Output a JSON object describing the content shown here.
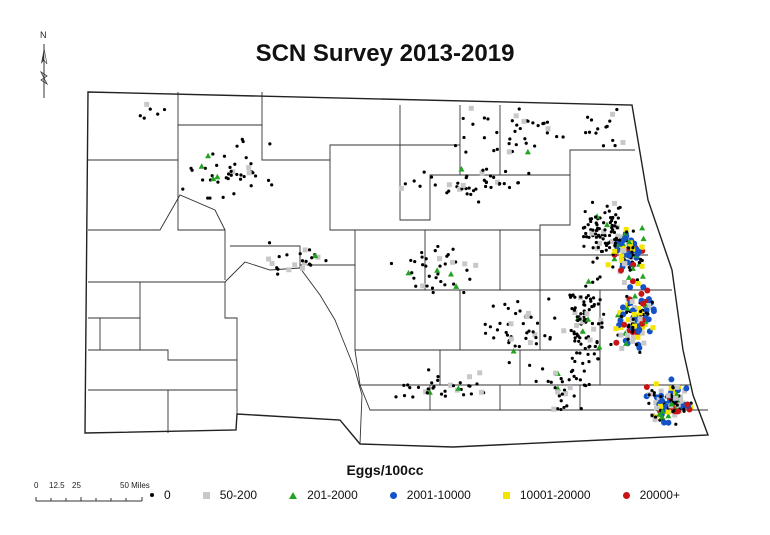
{
  "title": "SCN Survey 2013-2019",
  "north_arrow": {
    "label": "N",
    "icon": "north-arrow-icon"
  },
  "legend": {
    "title": "Eggs/100cc",
    "items": [
      {
        "label": "0",
        "symbol": "dot",
        "color": "#000000"
      },
      {
        "label": "50-200",
        "symbol": "square",
        "color": "#c8c8c8"
      },
      {
        "label": "201-2000",
        "symbol": "triangle",
        "color": "#22a322"
      },
      {
        "label": "2001-10000",
        "symbol": "circle",
        "color": "#1452c8"
      },
      {
        "label": "10001-20000",
        "symbol": "square",
        "color": "#f5e400"
      },
      {
        "label": "20000+",
        "symbol": "circle",
        "color": "#c81414"
      }
    ]
  },
  "scale_bar": {
    "labels": [
      "0",
      "12.5",
      "25",
      "50 Miles"
    ]
  }
}
